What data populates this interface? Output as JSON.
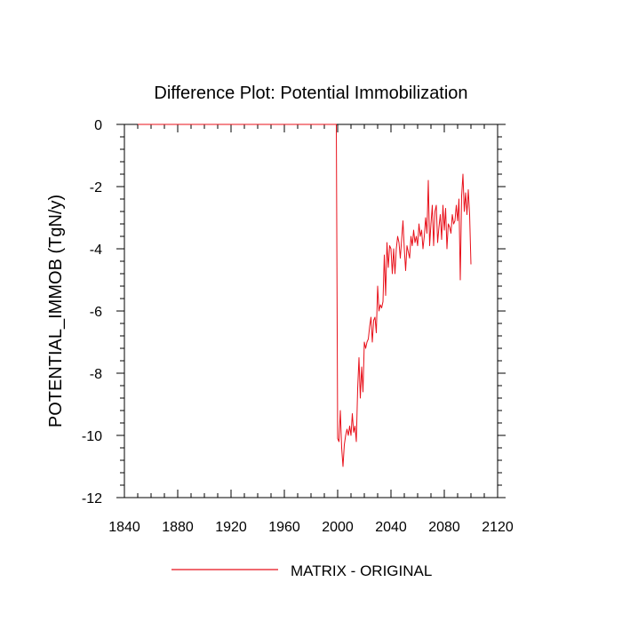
{
  "chart_data": {
    "type": "line",
    "title": "Difference Plot: Potential Immobilization",
    "xlabel": "",
    "ylabel": "POTENTIAL_IMMOB  (TgN/y)",
    "xlim": [
      1840,
      2120
    ],
    "ylim": [
      -12,
      0
    ],
    "xticks": [
      1840,
      1880,
      1920,
      1960,
      2000,
      2040,
      2080,
      2120
    ],
    "xtick_labels": [
      "1840",
      "1880",
      "1920",
      "1960",
      "2000",
      "2040",
      "2080",
      "2120"
    ],
    "yticks": [
      0,
      -2,
      -4,
      -6,
      -8,
      -10,
      -12
    ],
    "ytick_labels": [
      "0",
      "-2",
      "-4",
      "-6",
      "-8",
      "-10",
      "-12"
    ],
    "grid": false,
    "legend_position": "bottom-center",
    "series": [
      {
        "name": "MATRIX - ORIGINAL",
        "color": "#e8101a",
        "x": [
          1850,
          1900,
          1950,
          1999,
          2000,
          2001,
          2002,
          2003,
          2004,
          2005,
          2006,
          2007,
          2008,
          2009,
          2010,
          2011,
          2012,
          2013,
          2014,
          2015,
          2016,
          2017,
          2018,
          2019,
          2020,
          2021,
          2022,
          2023,
          2024,
          2025,
          2026,
          2027,
          2028,
          2029,
          2030,
          2031,
          2032,
          2033,
          2034,
          2035,
          2036,
          2037,
          2038,
          2039,
          2040,
          2041,
          2042,
          2043,
          2044,
          2045,
          2046,
          2047,
          2048,
          2049,
          2050,
          2051,
          2052,
          2053,
          2054,
          2055,
          2056,
          2057,
          2058,
          2059,
          2060,
          2061,
          2062,
          2063,
          2064,
          2065,
          2066,
          2067,
          2068,
          2069,
          2070,
          2071,
          2072,
          2073,
          2074,
          2075,
          2076,
          2077,
          2078,
          2079,
          2080,
          2081,
          2082,
          2083,
          2084,
          2085,
          2086,
          2087,
          2088,
          2089,
          2090,
          2091,
          2092,
          2093,
          2094,
          2095,
          2096,
          2097,
          2098,
          2099,
          2100
        ],
        "y": [
          0,
          0,
          0,
          0,
          -10.1,
          -10.2,
          -9.2,
          -10.4,
          -11.0,
          -10.3,
          -10.0,
          -9.8,
          -10.0,
          -9.7,
          -10.0,
          -9.3,
          -9.9,
          -9.7,
          -10.2,
          -8.5,
          -7.5,
          -8.8,
          -7.8,
          -8.6,
          -7.0,
          -7.2,
          -7.0,
          -6.9,
          -6.5,
          -6.2,
          -7.0,
          -6.3,
          -6.2,
          -6.7,
          -5.2,
          -6.0,
          -5.8,
          -5.9,
          -5.7,
          -4.2,
          -5.5,
          -3.8,
          -4.6,
          -3.9,
          -4.0,
          -4.8,
          -4.0,
          -4.8,
          -4.0,
          -3.6,
          -3.8,
          -4.3,
          -3.7,
          -3.1,
          -4.0,
          -4.7,
          -3.9,
          -4.1,
          -4.3,
          -3.6,
          -3.9,
          -3.4,
          -3.8,
          -3.6,
          -3.9,
          -3.2,
          -3.6,
          -3.4,
          -4.0,
          -3.6,
          -3.0,
          -3.5,
          -1.8,
          -3.9,
          -3.2,
          -2.6,
          -3.9,
          -2.8,
          -2.6,
          -3.8,
          -3.3,
          -2.9,
          -3.7,
          -2.6,
          -3.4,
          -2.7,
          -4.0,
          -3.2,
          -3.3,
          -3.5,
          -2.9,
          -3.2,
          -3.1,
          -2.6,
          -3.1,
          -2.4,
          -5.0,
          -2.3,
          -1.6,
          -2.8,
          -2.2,
          -2.9,
          -2.1,
          -2.9,
          -4.5
        ]
      }
    ]
  }
}
